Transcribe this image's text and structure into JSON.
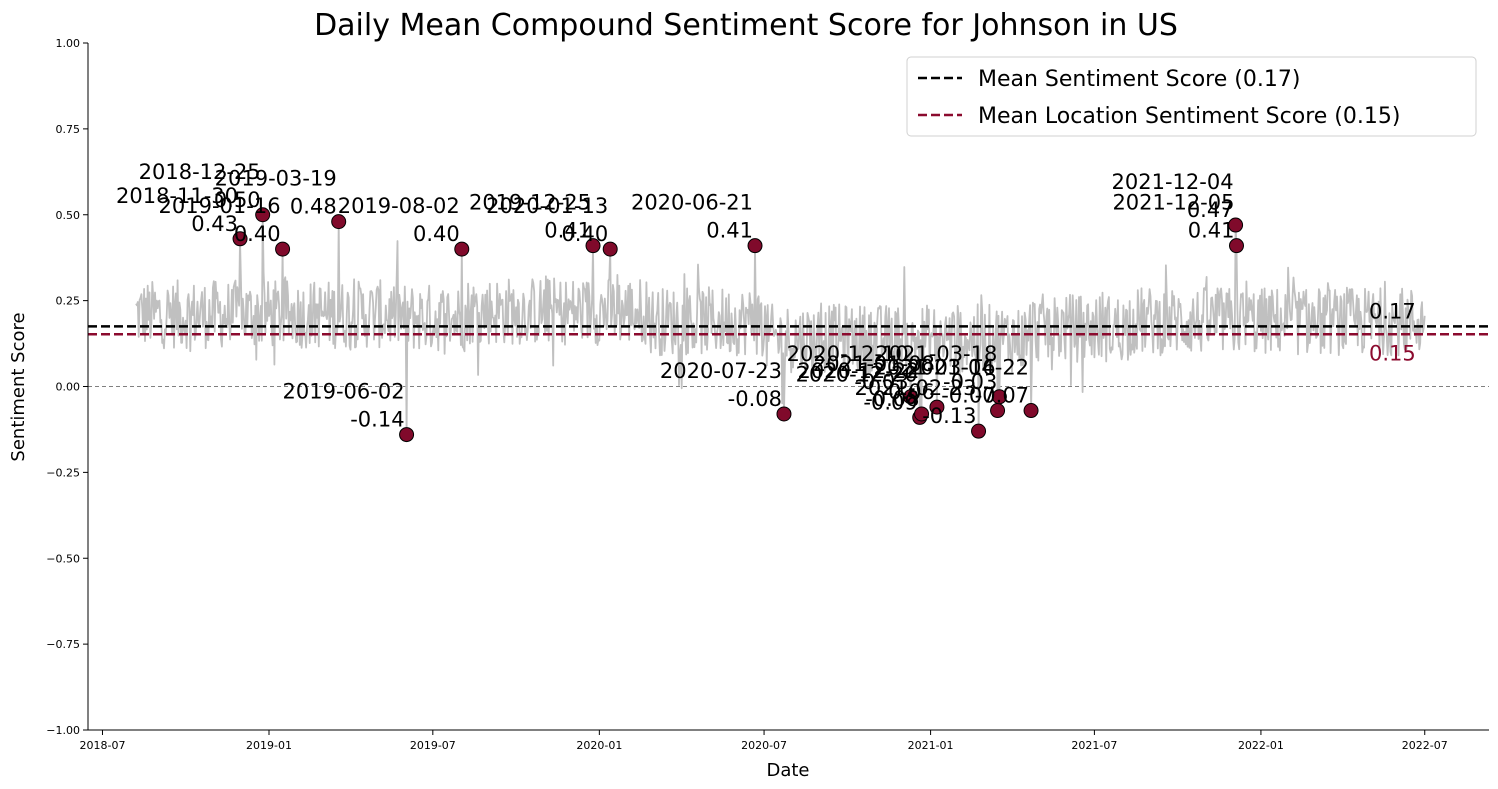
{
  "chart_data": {
    "type": "line",
    "title": "Daily Mean Compound Sentiment Score for Johnson in US",
    "xlabel": "Date",
    "ylabel": "Sentiment Score",
    "xlim": [
      "2018-06-15",
      "2022-09-10"
    ],
    "ylim": [
      -1.0,
      1.0
    ],
    "y_ticks": [
      -1.0,
      -0.75,
      -0.5,
      -0.25,
      0.0,
      0.25,
      0.5,
      0.75,
      1.0
    ],
    "y_tick_labels": [
      "−1.00",
      "−0.75",
      "−0.50",
      "−0.25",
      "0.00",
      "0.25",
      "0.50",
      "0.75",
      "1.00"
    ],
    "x_ticks": [
      "2018-07-01",
      "2019-01-01",
      "2019-07-01",
      "2020-01-01",
      "2020-07-01",
      "2021-01-01",
      "2021-07-01",
      "2022-01-01",
      "2022-07-01"
    ],
    "x_tick_labels": [
      "2018-07",
      "2019-01",
      "2019-07",
      "2020-01",
      "2020-07",
      "2021-01",
      "2021-07",
      "2022-01",
      "2022-07"
    ],
    "grid": false,
    "legend_position": "top-right",
    "series_line_color": "#c0c0c0",
    "series_range": [
      "2018-08-07",
      "2022-07-01"
    ],
    "mean_lines": [
      {
        "legend": "Mean Sentiment Score (0.17)",
        "value": 0.175,
        "label": "0.17",
        "color": "#000000"
      },
      {
        "legend": "Mean Location Sentiment Score (0.15)",
        "value": 0.152,
        "label": "0.15",
        "color": "#8b0a2e"
      }
    ],
    "zero_line": 0.0,
    "marker_color": "#800a2b",
    "highlighted_points": [
      {
        "date": "2018-11-30",
        "value": 0.43,
        "date_label": "2018-11-30",
        "value_label": "0.43"
      },
      {
        "date": "2018-12-25",
        "value": 0.5,
        "date_label": "2018-12-25",
        "value_label": "0.50"
      },
      {
        "date": "2019-01-16",
        "value": 0.4,
        "date_label": "2019-01-16",
        "value_label": "0.40"
      },
      {
        "date": "2019-03-19",
        "value": 0.48,
        "date_label": "2019-03-19",
        "value_label": "0.48"
      },
      {
        "date": "2019-06-02",
        "value": -0.14,
        "date_label": "2019-06-02",
        "value_label": "-0.14"
      },
      {
        "date": "2019-08-02",
        "value": 0.4,
        "date_label": "2019-08-02",
        "value_label": "0.40"
      },
      {
        "date": "2019-12-25",
        "value": 0.41,
        "date_label": "2019-12-25",
        "value_label": "0.41"
      },
      {
        "date": "2020-01-13",
        "value": 0.4,
        "date_label": "2020-01-13",
        "value_label": "0.40"
      },
      {
        "date": "2020-06-21",
        "value": 0.41,
        "date_label": "2020-06-21",
        "value_label": "0.41"
      },
      {
        "date": "2020-07-23",
        "value": -0.08,
        "date_label": "2020-07-23",
        "value_label": "-0.08"
      },
      {
        "date": "2020-12-10",
        "value": -0.03,
        "date_label": "2020-12-10",
        "value_label": "-0.03"
      },
      {
        "date": "2020-12-20",
        "value": -0.09,
        "date_label": "2020-12-20",
        "value_label": "-0.09"
      },
      {
        "date": "2020-12-22",
        "value": -0.08,
        "date_label": "2020-12-22",
        "value_label": "-0.08"
      },
      {
        "date": "2021-01-08",
        "value": -0.06,
        "date_label": "2021-01-08",
        "value_label": "-0.06"
      },
      {
        "date": "2021-02-23",
        "value": -0.13,
        "date_label": "2021-02-23",
        "value_label": "-0.13"
      },
      {
        "date": "2021-03-16",
        "value": -0.07,
        "date_label": "2021-03-16",
        "value_label": "-0.07"
      },
      {
        "date": "2021-03-18",
        "value": -0.03,
        "date_label": "2021-03-18",
        "value_label": "-0.03"
      },
      {
        "date": "2021-04-22",
        "value": -0.07,
        "date_label": "2021-04-22",
        "value_label": "-0.07"
      },
      {
        "date": "2021-12-04",
        "value": 0.47,
        "date_label": "2021-12-04",
        "value_label": "0.47"
      },
      {
        "date": "2021-12-05",
        "value": 0.41,
        "date_label": "2021-12-05",
        "value_label": "0.41"
      }
    ]
  }
}
